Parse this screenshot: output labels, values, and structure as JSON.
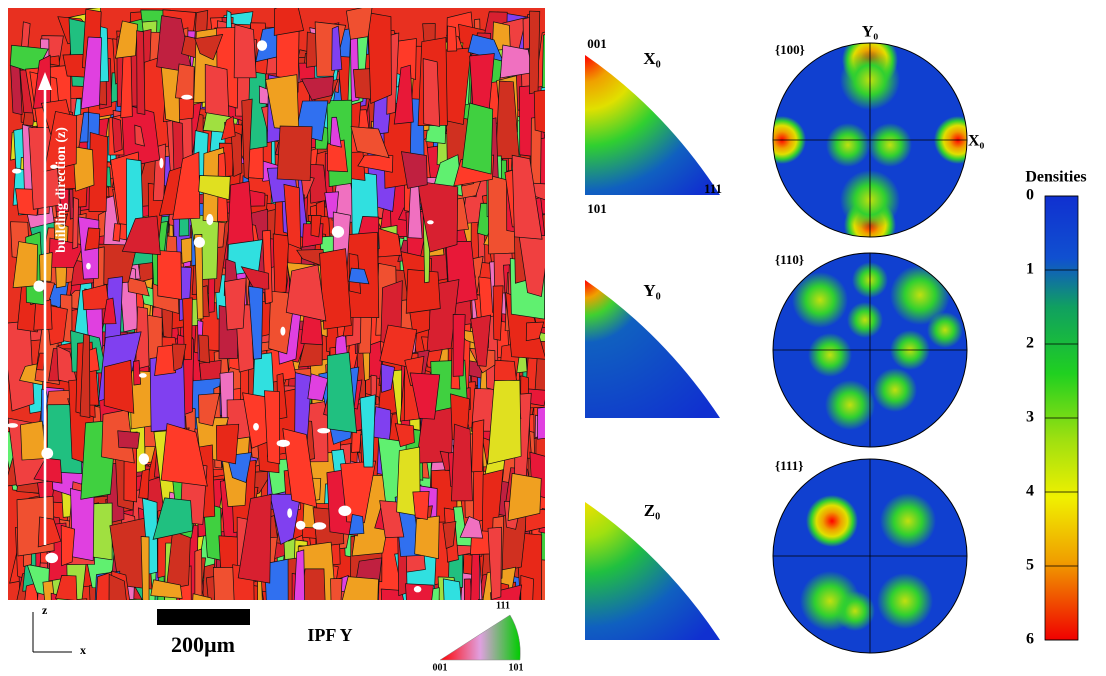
{
  "ebsd_map": {
    "annotation": "building direction (z)",
    "axis_z": "z",
    "axis_x": "x",
    "scale_bar": "200µm",
    "title": "IPF Y",
    "key_labels": [
      "001",
      "101",
      "111"
    ]
  },
  "inverse_pole_figures": [
    {
      "axis": "X₀",
      "labels": [
        "001",
        "101",
        "111"
      ]
    },
    {
      "axis": "Y₀"
    },
    {
      "axis": "Z₀"
    }
  ],
  "pole_figures": [
    {
      "label": "{100}"
    },
    {
      "label": "{110}"
    },
    {
      "label": "{111}"
    }
  ],
  "pole_axes": {
    "top": "Y₀",
    "right": "X₀"
  },
  "colorbar": {
    "title": "Densities",
    "lim": [
      0,
      6
    ],
    "ticks": [
      0,
      1,
      2,
      3,
      4,
      5,
      6
    ]
  }
}
